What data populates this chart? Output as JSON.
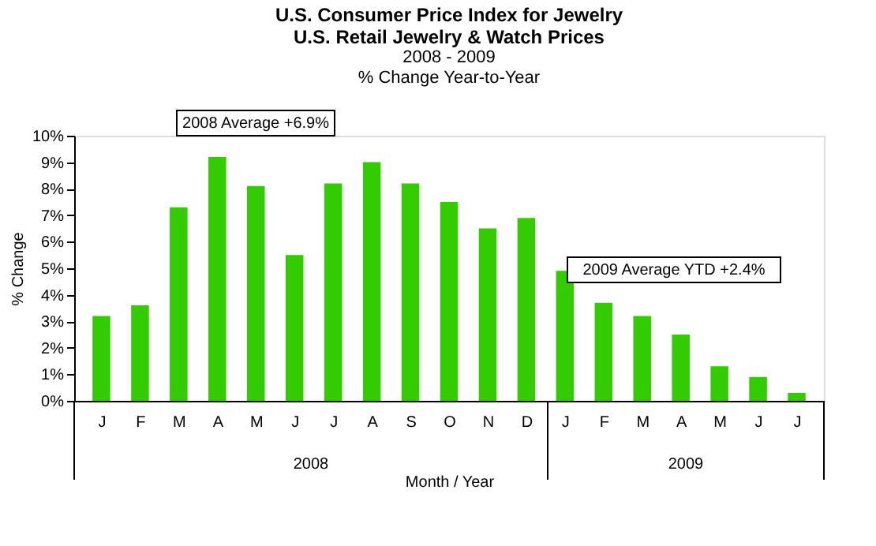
{
  "chart_data": {
    "type": "bar",
    "title": "U.S. Consumer Price Index for Jewelry\nU.S. Retail Jewelry & Watch Prices",
    "subtitle": "2008 - 2009\n% Change Year-to-Year",
    "xlabel": "Month / Year",
    "ylabel": "% Change",
    "categories": [
      "J",
      "F",
      "M",
      "A",
      "M",
      "J",
      "J",
      "A",
      "S",
      "O",
      "N",
      "D",
      "J",
      "F",
      "M",
      "A",
      "M",
      "J",
      "J"
    ],
    "values": [
      3.2,
      3.6,
      7.3,
      9.2,
      8.1,
      5.5,
      8.2,
      9.0,
      8.2,
      7.5,
      6.5,
      6.9,
      4.9,
      3.7,
      3.2,
      2.5,
      1.3,
      0.9,
      0.3
    ],
    "color": "#33cc00",
    "ylim": [
      0,
      10
    ],
    "yticks": [
      {
        "value": 0,
        "label": "0%"
      },
      {
        "value": 1,
        "label": "1%"
      },
      {
        "value": 2,
        "label": "2%"
      },
      {
        "value": 3,
        "label": "3%"
      },
      {
        "value": 4,
        "label": "4%"
      },
      {
        "value": 5,
        "label": "5%"
      },
      {
        "value": 6,
        "label": "6%"
      },
      {
        "value": 7,
        "label": "7%"
      },
      {
        "value": 8,
        "label": "8%"
      },
      {
        "value": 9,
        "label": "9%"
      },
      {
        "value": 10,
        "label": "10%"
      }
    ],
    "annotations": [
      "2008 Average +6.9%",
      "2009 Average YTD +2.4%",
      "2008",
      "2009"
    ],
    "grid": false
  }
}
